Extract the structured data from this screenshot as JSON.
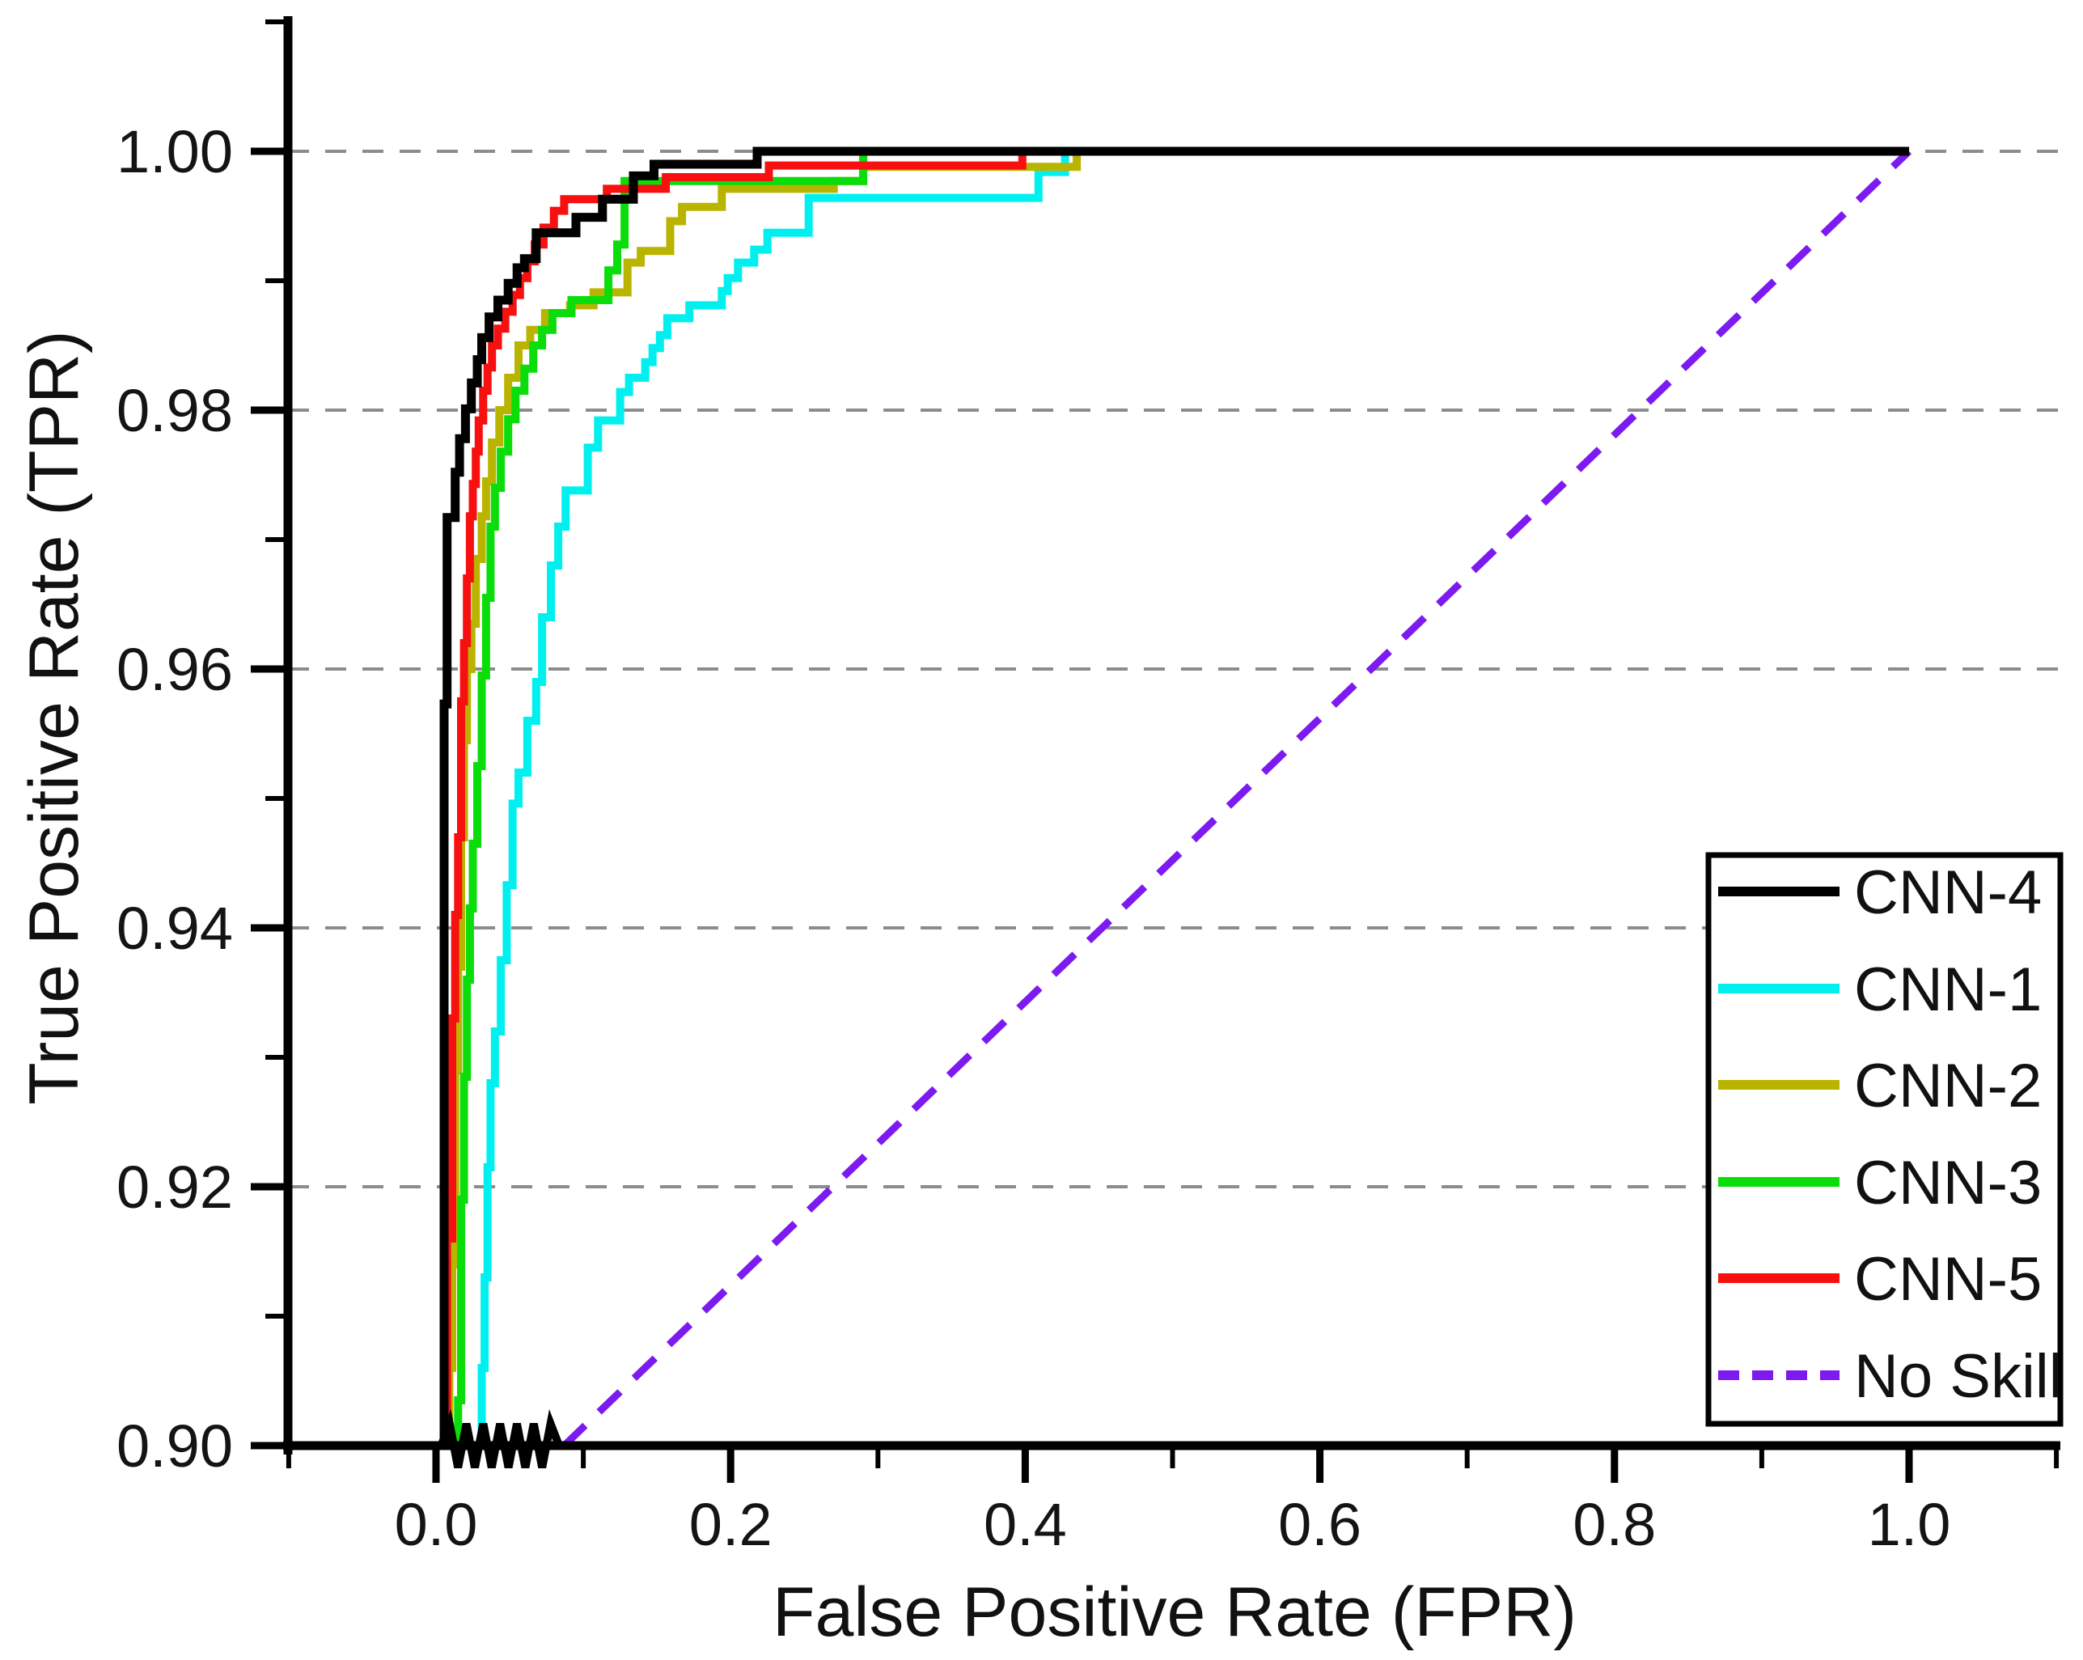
{
  "axes": {
    "x": {
      "label": "False Positive Rate (FPR)",
      "ticks": [
        {
          "label": "0.0",
          "value": 0.0
        },
        {
          "label": "0.2",
          "value": 0.2
        },
        {
          "label": "0.4",
          "value": 0.4
        },
        {
          "label": "0.6",
          "value": 0.6
        },
        {
          "label": "0.8",
          "value": 0.8
        },
        {
          "label": "1.0",
          "value": 1.0
        }
      ],
      "minor_ticks": [
        -0.1,
        0.1,
        0.3,
        0.5,
        0.7,
        0.9,
        1.1
      ],
      "range": [
        -0.104,
        1.103
      ],
      "grid": false
    },
    "y": {
      "label": "True Positive Rate (TPR)",
      "ticks": [
        {
          "label": "1.00",
          "value": 1.0
        },
        {
          "label": "0.98",
          "value": 0.98
        },
        {
          "label": "0.96",
          "value": 0.96
        },
        {
          "label": "0.94",
          "value": 0.94
        },
        {
          "label": "0.92",
          "value": 0.92
        },
        {
          "label": "0.90",
          "value": 0.9
        }
      ],
      "minor_ticks": [
        0.91,
        0.93,
        0.95,
        0.97,
        0.99,
        1.01
      ],
      "range": [
        0.9,
        1.0104
      ],
      "grid": true,
      "gridline_values": [
        0.92,
        0.94,
        0.96,
        0.98,
        1.0
      ],
      "grid_color": "#8c8c8c"
    }
  },
  "legend": {
    "position": "bottom-right",
    "entries": [
      {
        "label": "CNN-4"
      },
      {
        "label": "CNN-1"
      },
      {
        "label": "CNN-2"
      },
      {
        "label": "CNN-3"
      },
      {
        "label": "CNN-5"
      },
      {
        "label": "No Skill"
      }
    ]
  },
  "chart_data": {
    "type": "line",
    "subtype": "roc-step-curves",
    "xlabel": "False Positive Rate (FPR)",
    "ylabel": "True Positive Rate (TPR)",
    "xlim": [
      -0.104,
      1.103
    ],
    "ylim": [
      0.9,
      1.0104
    ],
    "axis_break": {
      "from_fpr": 0.0035,
      "to_fpr": 0.0835,
      "teeth": 7
    },
    "draw_order": [
      5,
      1,
      2,
      3,
      4,
      0
    ],
    "series": [
      {
        "name": "CNN-4",
        "color": "#000000",
        "dashed": false,
        "points": [
          [
            0.0055,
            0.9
          ],
          [
            0.0055,
            0.9573
          ],
          [
            0.0075,
            0.9573
          ],
          [
            0.0075,
            0.9717
          ],
          [
            0.013,
            0.9717
          ],
          [
            0.013,
            0.9752
          ],
          [
            0.016,
            0.9752
          ],
          [
            0.016,
            0.9778
          ],
          [
            0.02,
            0.9778
          ],
          [
            0.02,
            0.9801
          ],
          [
            0.024,
            0.9801
          ],
          [
            0.024,
            0.9821
          ],
          [
            0.028,
            0.9821
          ],
          [
            0.028,
            0.9839
          ],
          [
            0.031,
            0.9839
          ],
          [
            0.031,
            0.9856
          ],
          [
            0.036,
            0.9856
          ],
          [
            0.036,
            0.9872
          ],
          [
            0.042,
            0.9872
          ],
          [
            0.042,
            0.9885
          ],
          [
            0.049,
            0.9885
          ],
          [
            0.049,
            0.9898
          ],
          [
            0.055,
            0.9898
          ],
          [
            0.055,
            0.991
          ],
          [
            0.06,
            0.991
          ],
          [
            0.06,
            0.9917
          ],
          [
            0.068,
            0.9917
          ],
          [
            0.068,
            0.9937
          ],
          [
            0.095,
            0.9937
          ],
          [
            0.095,
            0.9949
          ],
          [
            0.113,
            0.9949
          ],
          [
            0.113,
            0.9963
          ],
          [
            0.134,
            0.9963
          ],
          [
            0.134,
            0.9981
          ],
          [
            0.148,
            0.9981
          ],
          [
            0.148,
            0.999
          ],
          [
            0.218,
            0.999
          ],
          [
            0.218,
            1.0
          ],
          [
            1.0,
            1.0
          ]
        ]
      },
      {
        "name": "CNN-1",
        "color": "#00F0F0",
        "dashed": false,
        "points": [
          [
            0.031,
            0.9
          ],
          [
            0.031,
            0.906
          ],
          [
            0.033,
            0.906
          ],
          [
            0.033,
            0.913
          ],
          [
            0.035,
            0.913
          ],
          [
            0.035,
            0.9215
          ],
          [
            0.037,
            0.9215
          ],
          [
            0.037,
            0.928
          ],
          [
            0.04,
            0.928
          ],
          [
            0.04,
            0.932
          ],
          [
            0.044,
            0.932
          ],
          [
            0.044,
            0.9375
          ],
          [
            0.048,
            0.9375
          ],
          [
            0.048,
            0.9433
          ],
          [
            0.052,
            0.9433
          ],
          [
            0.052,
            0.9496
          ],
          [
            0.056,
            0.9496
          ],
          [
            0.056,
            0.952
          ],
          [
            0.062,
            0.952
          ],
          [
            0.062,
            0.956
          ],
          [
            0.068,
            0.956
          ],
          [
            0.068,
            0.959
          ],
          [
            0.072,
            0.959
          ],
          [
            0.072,
            0.964
          ],
          [
            0.078,
            0.964
          ],
          [
            0.078,
            0.968
          ],
          [
            0.083,
            0.968
          ],
          [
            0.083,
            0.971
          ],
          [
            0.088,
            0.971
          ],
          [
            0.088,
            0.9738
          ],
          [
            0.103,
            0.9738
          ],
          [
            0.103,
            0.9771
          ],
          [
            0.11,
            0.9771
          ],
          [
            0.11,
            0.9792
          ],
          [
            0.125,
            0.9792
          ],
          [
            0.125,
            0.9814
          ],
          [
            0.131,
            0.9814
          ],
          [
            0.131,
            0.9825
          ],
          [
            0.142,
            0.9825
          ],
          [
            0.142,
            0.9837
          ],
          [
            0.147,
            0.9837
          ],
          [
            0.147,
            0.9848
          ],
          [
            0.152,
            0.9848
          ],
          [
            0.152,
            0.9858
          ],
          [
            0.157,
            0.9858
          ],
          [
            0.157,
            0.9871
          ],
          [
            0.172,
            0.9871
          ],
          [
            0.172,
            0.9881
          ],
          [
            0.194,
            0.9881
          ],
          [
            0.194,
            0.9892
          ],
          [
            0.198,
            0.9892
          ],
          [
            0.198,
            0.9902
          ],
          [
            0.205,
            0.9902
          ],
          [
            0.205,
            0.9914
          ],
          [
            0.216,
            0.9914
          ],
          [
            0.216,
            0.9924
          ],
          [
            0.225,
            0.9924
          ],
          [
            0.225,
            0.9937
          ],
          [
            0.253,
            0.9937
          ],
          [
            0.253,
            0.9964
          ],
          [
            0.409,
            0.9964
          ],
          [
            0.409,
            0.9984
          ],
          [
            0.427,
            0.9984
          ],
          [
            0.427,
            1.0
          ],
          [
            1.0,
            1.0
          ]
        ]
      },
      {
        "name": "CNN-2",
        "color": "#B9B400",
        "dashed": false,
        "points": [
          [
            0.009,
            0.9
          ],
          [
            0.009,
            0.906
          ],
          [
            0.011,
            0.906
          ],
          [
            0.011,
            0.914
          ],
          [
            0.013,
            0.914
          ],
          [
            0.013,
            0.929
          ],
          [
            0.015,
            0.929
          ],
          [
            0.015,
            0.937
          ],
          [
            0.017,
            0.937
          ],
          [
            0.017,
            0.947
          ],
          [
            0.019,
            0.947
          ],
          [
            0.019,
            0.9545
          ],
          [
            0.021,
            0.9545
          ],
          [
            0.021,
            0.96
          ],
          [
            0.024,
            0.96
          ],
          [
            0.024,
            0.9635
          ],
          [
            0.027,
            0.9635
          ],
          [
            0.027,
            0.9685
          ],
          [
            0.031,
            0.9685
          ],
          [
            0.031,
            0.9718
          ],
          [
            0.034,
            0.9718
          ],
          [
            0.034,
            0.9745
          ],
          [
            0.038,
            0.9745
          ],
          [
            0.038,
            0.9775
          ],
          [
            0.043,
            0.9775
          ],
          [
            0.043,
            0.98
          ],
          [
            0.049,
            0.98
          ],
          [
            0.049,
            0.9825
          ],
          [
            0.056,
            0.9825
          ],
          [
            0.056,
            0.985
          ],
          [
            0.064,
            0.985
          ],
          [
            0.064,
            0.9862
          ],
          [
            0.074,
            0.9862
          ],
          [
            0.074,
            0.9875
          ],
          [
            0.091,
            0.9875
          ],
          [
            0.091,
            0.9881
          ],
          [
            0.107,
            0.9881
          ],
          [
            0.107,
            0.9891
          ],
          [
            0.13,
            0.9891
          ],
          [
            0.13,
            0.9914
          ],
          [
            0.139,
            0.9914
          ],
          [
            0.139,
            0.9923
          ],
          [
            0.159,
            0.9923
          ],
          [
            0.159,
            0.9946
          ],
          [
            0.167,
            0.9946
          ],
          [
            0.167,
            0.9957
          ],
          [
            0.194,
            0.9957
          ],
          [
            0.194,
            0.9971
          ],
          [
            0.27,
            0.9971
          ],
          [
            0.27,
            0.9977
          ],
          [
            0.29,
            0.9977
          ],
          [
            0.29,
            0.9988
          ],
          [
            0.435,
            0.9988
          ],
          [
            0.435,
            1.0
          ],
          [
            1.0,
            1.0
          ]
        ]
      },
      {
        "name": "CNN-3",
        "color": "#0ADD0A",
        "dashed": false,
        "points": [
          [
            0.015,
            0.9
          ],
          [
            0.015,
            0.9035
          ],
          [
            0.017,
            0.9035
          ],
          [
            0.017,
            0.919
          ],
          [
            0.019,
            0.919
          ],
          [
            0.019,
            0.9285
          ],
          [
            0.021,
            0.9285
          ],
          [
            0.021,
            0.936
          ],
          [
            0.023,
            0.936
          ],
          [
            0.023,
            0.9415
          ],
          [
            0.025,
            0.9415
          ],
          [
            0.025,
            0.9465
          ],
          [
            0.028,
            0.9465
          ],
          [
            0.028,
            0.9525
          ],
          [
            0.031,
            0.9525
          ],
          [
            0.031,
            0.9595
          ],
          [
            0.034,
            0.9595
          ],
          [
            0.034,
            0.9655
          ],
          [
            0.037,
            0.9655
          ],
          [
            0.037,
            0.971
          ],
          [
            0.04,
            0.971
          ],
          [
            0.04,
            0.974
          ],
          [
            0.044,
            0.974
          ],
          [
            0.044,
            0.9768
          ],
          [
            0.049,
            0.9768
          ],
          [
            0.049,
            0.9793
          ],
          [
            0.054,
            0.9793
          ],
          [
            0.054,
            0.9815
          ],
          [
            0.06,
            0.9815
          ],
          [
            0.06,
            0.9832
          ],
          [
            0.066,
            0.9832
          ],
          [
            0.066,
            0.985
          ],
          [
            0.072,
            0.985
          ],
          [
            0.072,
            0.9862
          ],
          [
            0.079,
            0.9862
          ],
          [
            0.079,
            0.9875
          ],
          [
            0.092,
            0.9875
          ],
          [
            0.092,
            0.9885
          ],
          [
            0.117,
            0.9885
          ],
          [
            0.117,
            0.9908
          ],
          [
            0.123,
            0.9908
          ],
          [
            0.123,
            0.9928
          ],
          [
            0.128,
            0.9928
          ],
          [
            0.128,
            0.9977
          ],
          [
            0.29,
            0.9977
          ],
          [
            0.29,
            1.0
          ],
          [
            1.0,
            1.0
          ]
        ]
      },
      {
        "name": "CNN-5",
        "color": "#F6100F",
        "dashed": false,
        "points": [
          [
            0.0075,
            0.9
          ],
          [
            0.0075,
            0.916
          ],
          [
            0.011,
            0.916
          ],
          [
            0.011,
            0.933
          ],
          [
            0.013,
            0.933
          ],
          [
            0.013,
            0.941
          ],
          [
            0.015,
            0.941
          ],
          [
            0.015,
            0.947
          ],
          [
            0.017,
            0.947
          ],
          [
            0.017,
            0.9575
          ],
          [
            0.019,
            0.9575
          ],
          [
            0.019,
            0.962
          ],
          [
            0.021,
            0.962
          ],
          [
            0.021,
            0.967
          ],
          [
            0.023,
            0.967
          ],
          [
            0.023,
            0.9718
          ],
          [
            0.025,
            0.9718
          ],
          [
            0.025,
            0.9743
          ],
          [
            0.027,
            0.9743
          ],
          [
            0.027,
            0.9768
          ],
          [
            0.029,
            0.9768
          ],
          [
            0.029,
            0.9792
          ],
          [
            0.032,
            0.9792
          ],
          [
            0.032,
            0.9815
          ],
          [
            0.035,
            0.9815
          ],
          [
            0.035,
            0.9833
          ],
          [
            0.038,
            0.9833
          ],
          [
            0.038,
            0.985
          ],
          [
            0.042,
            0.985
          ],
          [
            0.042,
            0.9863
          ],
          [
            0.047,
            0.9863
          ],
          [
            0.047,
            0.9876
          ],
          [
            0.052,
            0.9876
          ],
          [
            0.052,
            0.9889
          ],
          [
            0.057,
            0.9889
          ],
          [
            0.057,
            0.9902
          ],
          [
            0.062,
            0.9902
          ],
          [
            0.062,
            0.9915
          ],
          [
            0.067,
            0.9915
          ],
          [
            0.067,
            0.9928
          ],
          [
            0.073,
            0.9928
          ],
          [
            0.073,
            0.9941
          ],
          [
            0.08,
            0.9941
          ],
          [
            0.08,
            0.9954
          ],
          [
            0.087,
            0.9954
          ],
          [
            0.087,
            0.9963
          ],
          [
            0.116,
            0.9963
          ],
          [
            0.116,
            0.9971
          ],
          [
            0.156,
            0.9971
          ],
          [
            0.156,
            0.998
          ],
          [
            0.226,
            0.998
          ],
          [
            0.226,
            0.9989
          ],
          [
            0.398,
            0.9989
          ],
          [
            0.398,
            1.0
          ],
          [
            1.0,
            1.0
          ]
        ]
      },
      {
        "name": "No Skill",
        "color": "#7C1AF0",
        "dashed": true,
        "points": [
          [
            0.087,
            0.9
          ],
          [
            1.0,
            1.0
          ]
        ]
      }
    ]
  }
}
